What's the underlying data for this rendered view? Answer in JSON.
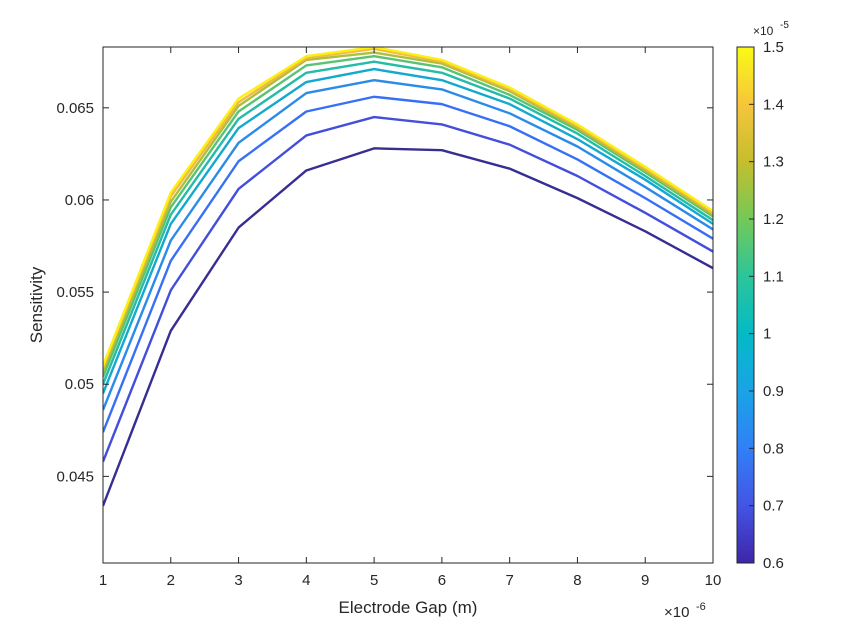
{
  "chart_data": {
    "type": "line",
    "xlabel": "Electrode Gap (m)",
    "ylabel": "Sensitivity",
    "x_exponent_label": "×10",
    "x_exponent": "-6",
    "x": [
      1,
      2,
      3,
      4,
      5,
      6,
      7,
      8,
      9,
      10
    ],
    "xlim": [
      1,
      10
    ],
    "ylim": [
      0.0403,
      0.0683
    ],
    "xticks": [
      "1",
      "2",
      "3",
      "4",
      "5",
      "6",
      "7",
      "8",
      "9",
      "10"
    ],
    "yticks": [
      {
        "value": 0.045,
        "label": "0.045"
      },
      {
        "value": 0.05,
        "label": "0.05"
      },
      {
        "value": 0.055,
        "label": "0.055"
      },
      {
        "value": 0.06,
        "label": "0.06"
      },
      {
        "value": 0.065,
        "label": "0.065"
      }
    ],
    "grid": false,
    "colorbar": {
      "range": [
        0.6,
        1.5
      ],
      "exponent_label": "×10",
      "exponent": "-5",
      "ticks": [
        {
          "value": 0.6,
          "label": "0.6"
        },
        {
          "value": 0.7,
          "label": "0.7"
        },
        {
          "value": 0.8,
          "label": "0.8"
        },
        {
          "value": 0.9,
          "label": "0.9"
        },
        {
          "value": 1.0,
          "label": "1"
        },
        {
          "value": 1.1,
          "label": "1.1"
        },
        {
          "value": 1.2,
          "label": "1.2"
        },
        {
          "value": 1.3,
          "label": "1.3"
        },
        {
          "value": 1.4,
          "label": "1.4"
        },
        {
          "value": 1.5,
          "label": "1.5"
        }
      ],
      "colormap": [
        "#3e26a8",
        "#4454e4",
        "#3180f7",
        "#1aa3e6",
        "#04bac6",
        "#2cc59a",
        "#74c957",
        "#c5be2e",
        "#f7c53b",
        "#f9fb15"
      ]
    },
    "series": [
      {
        "param": 0.6,
        "color": "#372e92",
        "values": [
          0.0434,
          0.0529,
          0.0585,
          0.0616,
          0.0628,
          0.0627,
          0.0617,
          0.0601,
          0.0583,
          0.0563
        ]
      },
      {
        "param": 0.7,
        "color": "#434edb",
        "values": [
          0.0458,
          0.0551,
          0.0606,
          0.0635,
          0.0645,
          0.0641,
          0.063,
          0.0613,
          0.0593,
          0.0572
        ]
      },
      {
        "param": 0.8,
        "color": "#3870f5",
        "values": [
          0.0474,
          0.0567,
          0.0621,
          0.0648,
          0.0656,
          0.0652,
          0.064,
          0.0622,
          0.0601,
          0.0579
        ]
      },
      {
        "param": 0.9,
        "color": "#2b8be8",
        "values": [
          0.0486,
          0.0578,
          0.0631,
          0.0658,
          0.0665,
          0.066,
          0.0647,
          0.0629,
          0.0607,
          0.0584
        ]
      },
      {
        "param": 1.0,
        "color": "#13a9cf",
        "values": [
          0.0495,
          0.0587,
          0.0639,
          0.0664,
          0.0671,
          0.0665,
          0.0652,
          0.0633,
          0.0611,
          0.0587
        ]
      },
      {
        "param": 1.1,
        "color": "#24bba7",
        "values": [
          0.05,
          0.0592,
          0.0644,
          0.0669,
          0.0675,
          0.0669,
          0.0655,
          0.0636,
          0.0613,
          0.0589
        ]
      },
      {
        "param": 1.2,
        "color": "#5ac373",
        "values": [
          0.0504,
          0.0596,
          0.0648,
          0.0673,
          0.0678,
          0.0672,
          0.0657,
          0.0638,
          0.0615,
          0.0591
        ]
      },
      {
        "param": 1.3,
        "color": "#aebf3a",
        "values": [
          0.0507,
          0.0599,
          0.0651,
          0.0676,
          0.068,
          0.0674,
          0.0659,
          0.0639,
          0.0616,
          0.0592
        ]
      },
      {
        "param": 1.4,
        "color": "#f5b942",
        "values": [
          0.0509,
          0.0602,
          0.0653,
          0.0677,
          0.0682,
          0.0675,
          0.066,
          0.064,
          0.0617,
          0.0593
        ]
      },
      {
        "param": 1.5,
        "color": "#f9f014",
        "values": [
          0.051,
          0.0604,
          0.0655,
          0.0678,
          0.0683,
          0.0676,
          0.0661,
          0.0641,
          0.0618,
          0.0594
        ]
      }
    ]
  }
}
